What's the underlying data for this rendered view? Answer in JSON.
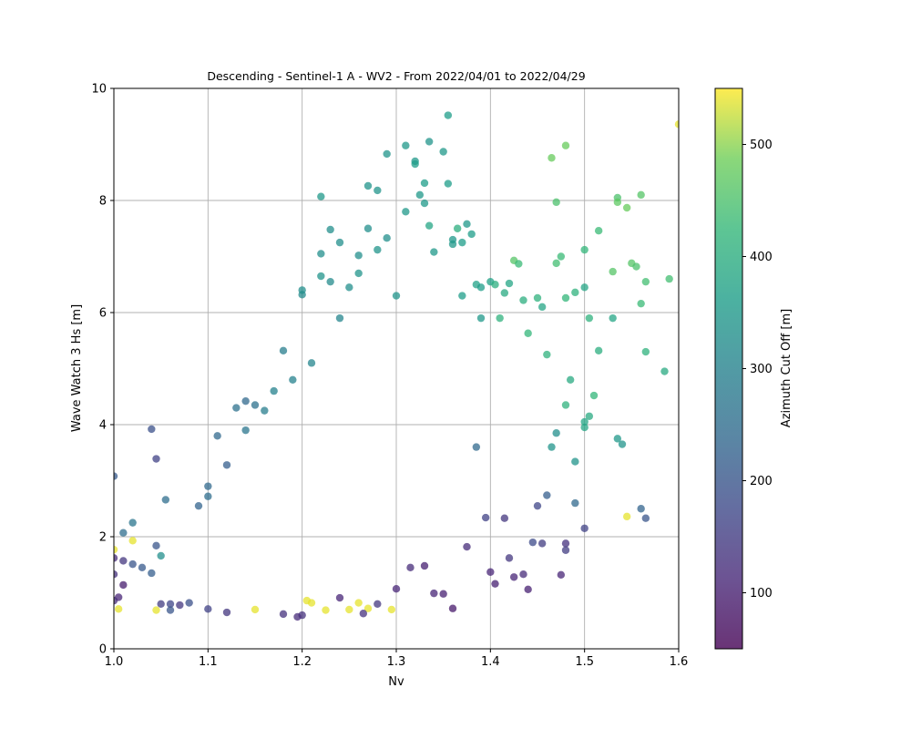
{
  "chart_data": {
    "type": "scatter",
    "title": "Descending - Sentinel-1 A - WV2 - From 2022/04/01 to 2022/04/29",
    "xlabel": "Nv",
    "ylabel": "Wave Watch 3 Hs [m]",
    "xlim": [
      1.0,
      1.6
    ],
    "ylim": [
      0,
      10
    ],
    "xticks": [
      1.0,
      1.1,
      1.2,
      1.3,
      1.4,
      1.5,
      1.6
    ],
    "xtick_labels": [
      "1.0",
      "1.1",
      "1.2",
      "1.3",
      "1.4",
      "1.5",
      "1.6"
    ],
    "yticks": [
      0,
      2,
      4,
      6,
      8,
      10
    ],
    "ytick_labels": [
      "0",
      "2",
      "4",
      "6",
      "8",
      "10"
    ],
    "grid": true,
    "colorbar": {
      "label": "Azimuth Cut Off [m]",
      "range": [
        50,
        550
      ],
      "colormap": "viridis",
      "ticks": [
        100,
        200,
        300,
        400,
        500
      ],
      "tick_labels": [
        "100",
        "200",
        "300",
        "400",
        "500"
      ]
    },
    "marker_alpha": 0.75,
    "points": [
      [
        1.0,
        3.08,
        210
      ],
      [
        1.0,
        1.62,
        120
      ],
      [
        1.01,
        1.57,
        140
      ],
      [
        1.0,
        1.33,
        130
      ],
      [
        1.01,
        1.14,
        95
      ],
      [
        1.005,
        0.92,
        110
      ],
      [
        1.0,
        0.86,
        120
      ],
      [
        1.005,
        0.71,
        540
      ],
      [
        1.0,
        1.77,
        540
      ],
      [
        1.01,
        2.07,
        250
      ],
      [
        1.02,
        2.25,
        270
      ],
      [
        1.02,
        1.93,
        540
      ],
      [
        1.02,
        1.51,
        200
      ],
      [
        1.03,
        1.45,
        210
      ],
      [
        1.04,
        1.35,
        220
      ],
      [
        1.04,
        3.92,
        190
      ],
      [
        1.045,
        3.39,
        160
      ],
      [
        1.045,
        1.84,
        200
      ],
      [
        1.05,
        1.66,
        330
      ],
      [
        1.045,
        0.69,
        540
      ],
      [
        1.055,
        2.66,
        250
      ],
      [
        1.05,
        0.8,
        150
      ],
      [
        1.06,
        0.8,
        170
      ],
      [
        1.06,
        0.69,
        200
      ],
      [
        1.07,
        0.78,
        140
      ],
      [
        1.08,
        0.82,
        190
      ],
      [
        1.09,
        2.55,
        230
      ],
      [
        1.1,
        2.9,
        240
      ],
      [
        1.1,
        2.72,
        250
      ],
      [
        1.11,
        3.8,
        240
      ],
      [
        1.12,
        3.28,
        220
      ],
      [
        1.13,
        4.3,
        260
      ],
      [
        1.14,
        4.42,
        240
      ],
      [
        1.14,
        3.9,
        270
      ],
      [
        1.15,
        4.35,
        260
      ],
      [
        1.16,
        4.25,
        290
      ],
      [
        1.17,
        4.6,
        300
      ],
      [
        1.18,
        5.32,
        290
      ],
      [
        1.19,
        4.8,
        300
      ],
      [
        1.2,
        6.32,
        320
      ],
      [
        1.2,
        6.4,
        330
      ],
      [
        1.21,
        5.1,
        310
      ],
      [
        1.22,
        8.07,
        350
      ],
      [
        1.22,
        7.05,
        330
      ],
      [
        1.22,
        6.65,
        340
      ],
      [
        1.23,
        6.55,
        320
      ],
      [
        1.23,
        7.48,
        330
      ],
      [
        1.24,
        7.25,
        330
      ],
      [
        1.24,
        5.9,
        310
      ],
      [
        1.25,
        6.45,
        330
      ],
      [
        1.26,
        6.7,
        340
      ],
      [
        1.26,
        7.02,
        330
      ],
      [
        1.27,
        8.26,
        340
      ],
      [
        1.27,
        7.5,
        330
      ],
      [
        1.28,
        7.12,
        340
      ],
      [
        1.28,
        8.18,
        340
      ],
      [
        1.29,
        8.83,
        340
      ],
      [
        1.29,
        7.33,
        330
      ],
      [
        1.3,
        6.3,
        340
      ],
      [
        1.31,
        7.8,
        350
      ],
      [
        1.31,
        8.98,
        350
      ],
      [
        1.32,
        8.7,
        350
      ],
      [
        1.32,
        8.65,
        360
      ],
      [
        1.325,
        8.1,
        350
      ],
      [
        1.33,
        8.31,
        360
      ],
      [
        1.33,
        7.95,
        350
      ],
      [
        1.335,
        9.05,
        340
      ],
      [
        1.335,
        7.55,
        380
      ],
      [
        1.34,
        7.08,
        350
      ],
      [
        1.35,
        8.87,
        350
      ],
      [
        1.355,
        9.52,
        360
      ],
      [
        1.355,
        8.3,
        360
      ],
      [
        1.36,
        7.3,
        350
      ],
      [
        1.36,
        7.22,
        350
      ],
      [
        1.365,
        7.5,
        400
      ],
      [
        1.37,
        7.25,
        360
      ],
      [
        1.37,
        6.3,
        360
      ],
      [
        1.375,
        7.58,
        350
      ],
      [
        1.38,
        7.4,
        360
      ],
      [
        1.385,
        6.5,
        370
      ],
      [
        1.39,
        6.45,
        360
      ],
      [
        1.39,
        5.9,
        350
      ],
      [
        1.4,
        6.55,
        370
      ],
      [
        1.405,
        6.5,
        400
      ],
      [
        1.41,
        5.9,
        410
      ],
      [
        1.415,
        6.35,
        390
      ],
      [
        1.42,
        6.52,
        380
      ],
      [
        1.425,
        6.93,
        460
      ],
      [
        1.43,
        6.87,
        430
      ],
      [
        1.435,
        6.22,
        400
      ],
      [
        1.44,
        5.63,
        420
      ],
      [
        1.45,
        6.26,
        410
      ],
      [
        1.455,
        6.1,
        380
      ],
      [
        1.46,
        5.25,
        410
      ],
      [
        1.465,
        8.76,
        480
      ],
      [
        1.47,
        7.97,
        450
      ],
      [
        1.47,
        6.88,
        440
      ],
      [
        1.475,
        7.0,
        430
      ],
      [
        1.48,
        6.26,
        420
      ],
      [
        1.48,
        8.98,
        480
      ],
      [
        1.49,
        6.36,
        410
      ],
      [
        1.5,
        7.12,
        420
      ],
      [
        1.5,
        6.45,
        380
      ],
      [
        1.505,
        5.9,
        410
      ],
      [
        1.515,
        7.46,
        430
      ],
      [
        1.53,
        6.73,
        460
      ],
      [
        1.535,
        8.05,
        450
      ],
      [
        1.535,
        7.97,
        470
      ],
      [
        1.545,
        7.87,
        480
      ],
      [
        1.55,
        6.88,
        460
      ],
      [
        1.555,
        6.82,
        450
      ],
      [
        1.56,
        8.1,
        460
      ],
      [
        1.56,
        6.16,
        430
      ],
      [
        1.565,
        6.55,
        440
      ],
      [
        1.565,
        5.3,
        410
      ],
      [
        1.59,
        6.6,
        440
      ],
      [
        1.6,
        9.36,
        540
      ],
      [
        1.585,
        4.95,
        390
      ],
      [
        1.565,
        2.33,
        200
      ],
      [
        1.56,
        2.5,
        230
      ],
      [
        1.545,
        2.36,
        540
      ],
      [
        1.54,
        3.65,
        340
      ],
      [
        1.535,
        3.75,
        350
      ],
      [
        1.53,
        5.9,
        380
      ],
      [
        1.515,
        5.32,
        400
      ],
      [
        1.51,
        4.52,
        420
      ],
      [
        1.505,
        4.15,
        390
      ],
      [
        1.5,
        3.95,
        380
      ],
      [
        1.5,
        4.05,
        380
      ],
      [
        1.5,
        2.15,
        160
      ],
      [
        1.49,
        2.6,
        240
      ],
      [
        1.49,
        3.34,
        340
      ],
      [
        1.485,
        4.8,
        390
      ],
      [
        1.48,
        4.35,
        410
      ],
      [
        1.48,
        1.88,
        130
      ],
      [
        1.48,
        1.76,
        150
      ],
      [
        1.475,
        1.32,
        110
      ],
      [
        1.47,
        3.85,
        330
      ],
      [
        1.465,
        3.6,
        340
      ],
      [
        1.46,
        2.74,
        220
      ],
      [
        1.455,
        1.88,
        150
      ],
      [
        1.45,
        2.55,
        170
      ],
      [
        1.445,
        1.9,
        180
      ],
      [
        1.44,
        1.06,
        100
      ],
      [
        1.435,
        1.33,
        120
      ],
      [
        1.425,
        1.28,
        110
      ],
      [
        1.42,
        1.62,
        140
      ],
      [
        1.415,
        2.33,
        140
      ],
      [
        1.405,
        1.16,
        100
      ],
      [
        1.4,
        1.37,
        110
      ],
      [
        1.395,
        2.34,
        160
      ],
      [
        1.385,
        3.6,
        240
      ],
      [
        1.375,
        1.82,
        120
      ],
      [
        1.36,
        0.72,
        90
      ],
      [
        1.35,
        0.98,
        100
      ],
      [
        1.34,
        0.99,
        110
      ],
      [
        1.33,
        1.48,
        100
      ],
      [
        1.315,
        1.45,
        120
      ],
      [
        1.3,
        1.07,
        110
      ],
      [
        1.295,
        0.7,
        540
      ],
      [
        1.28,
        0.8,
        140
      ],
      [
        1.27,
        0.72,
        540
      ],
      [
        1.265,
        0.63,
        130
      ],
      [
        1.26,
        0.82,
        540
      ],
      [
        1.25,
        0.7,
        540
      ],
      [
        1.24,
        0.91,
        110
      ],
      [
        1.225,
        0.69,
        540
      ],
      [
        1.21,
        0.82,
        540
      ],
      [
        1.205,
        0.86,
        540
      ],
      [
        1.2,
        0.6,
        130
      ],
      [
        1.195,
        0.57,
        120
      ],
      [
        1.18,
        0.62,
        130
      ],
      [
        1.15,
        0.7,
        540
      ],
      [
        1.12,
        0.65,
        140
      ],
      [
        1.1,
        0.71,
        160
      ]
    ]
  }
}
